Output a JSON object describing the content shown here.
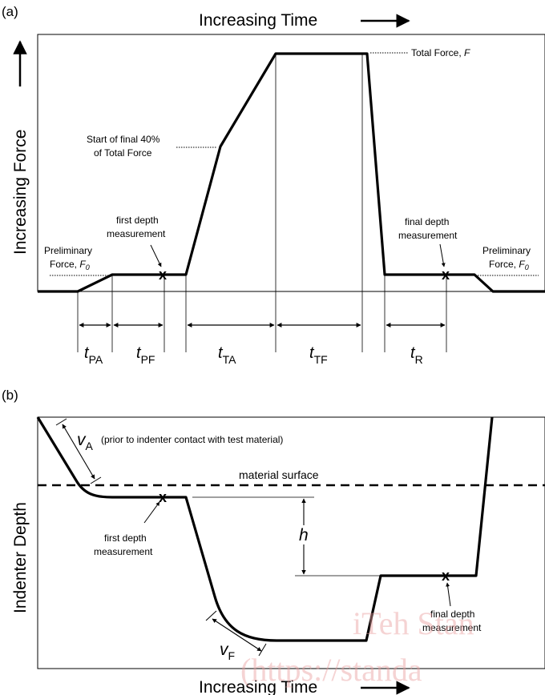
{
  "panel_a": {
    "tag": "(a)",
    "x_axis": "Increasing Time",
    "y_axis": "Increasing Force",
    "total_force": "Total Force,",
    "total_force_sym": "F",
    "start_final_1": "Start of final 40%",
    "start_final_2": "of Total Force",
    "first_depth_1": "first depth",
    "first_depth_2": "measurement",
    "final_depth_1": "final depth",
    "final_depth_2": "measurement",
    "prelim_left_1": "Preliminary",
    "prelim_left_2": "Force,",
    "prelim_right_1": "Preliminary",
    "prelim_right_2": "Force,",
    "f0_sym": "F",
    "f0_sub": "0",
    "t_sym": "t",
    "intervals": [
      {
        "sub": "PA"
      },
      {
        "sub": "PF"
      },
      {
        "sub": "TA"
      },
      {
        "sub": "TF"
      },
      {
        "sub": "R"
      }
    ]
  },
  "panel_b": {
    "tag": "(b)",
    "x_axis": "Increasing Time",
    "y_axis": "Indenter Depth",
    "va_sym": "v",
    "va_sub": "A",
    "va_note": "(prior to indenter contact with test material)",
    "material_surface": "material surface",
    "h_sym": "h",
    "first_depth_1": "first depth",
    "first_depth_2": "measurement",
    "final_depth_1": "final depth",
    "final_depth_2": "measurement",
    "vf_sym": "v",
    "vf_sub": "F"
  },
  "watermark": {
    "line1": "iTeh Stan",
    "line2": "(https://standa"
  },
  "colors": {
    "ink": "#000000",
    "watermark": "#e9a0a0"
  }
}
